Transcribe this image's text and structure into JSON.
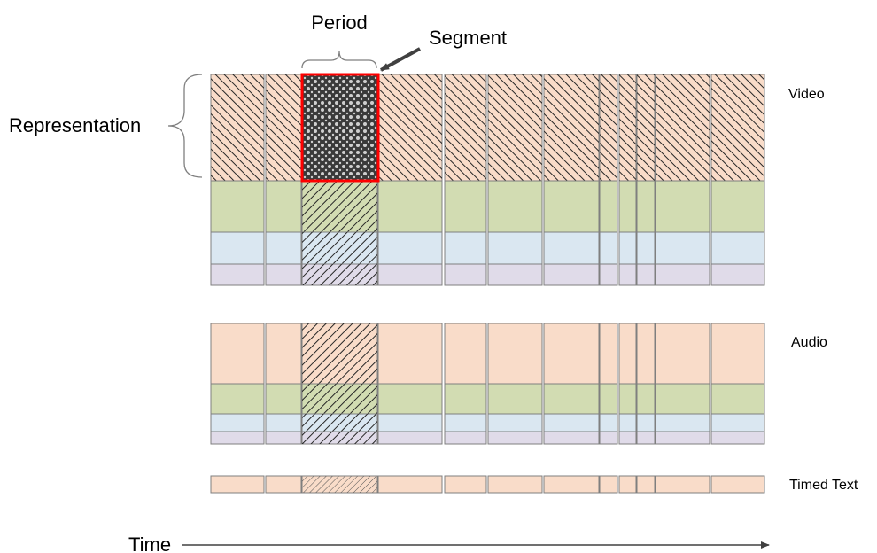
{
  "labels": {
    "period": "Period",
    "segment": "Segment",
    "representation": "Representation",
    "video": "Video",
    "audio": "Audio",
    "timed_text": "Timed Text",
    "time": "Time"
  },
  "colors": {
    "peach": "#f9dcc9",
    "green": "#d2dcb2",
    "blue": "#dae7f1",
    "lavender": "#e0dbe9",
    "stroke": "#7f7f7f",
    "highlight": "#ff0000",
    "hatch": "#262626",
    "arrow": "#404040"
  },
  "segment_columns": 12,
  "selected_column": 2
}
